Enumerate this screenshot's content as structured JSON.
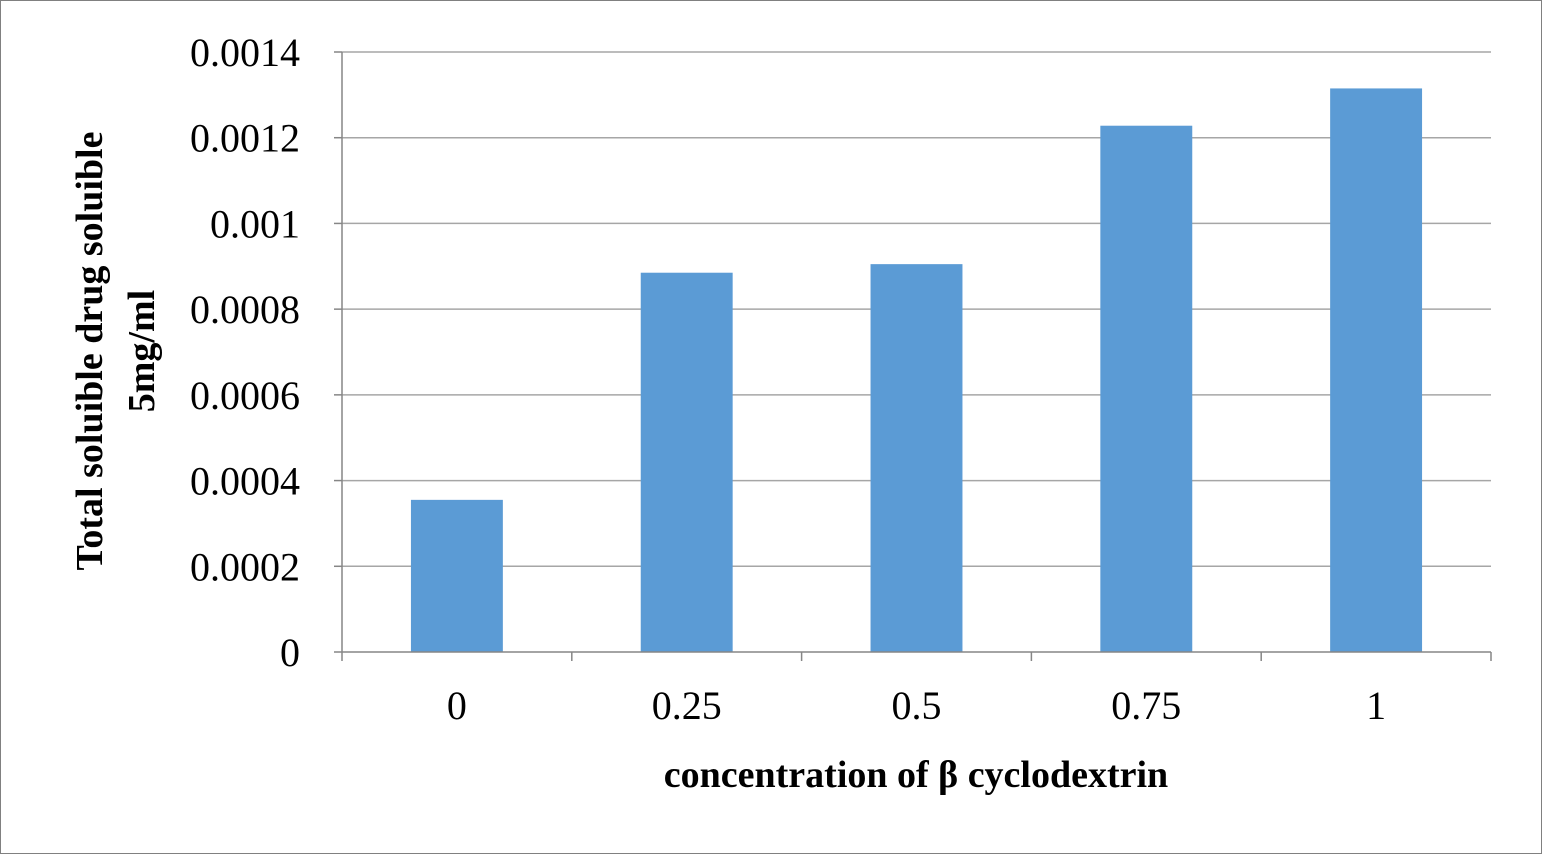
{
  "chart_data": {
    "type": "bar",
    "categories": [
      "0",
      "0.25",
      "0.5",
      "0.75",
      "1"
    ],
    "values": [
      0.000355,
      0.000885,
      0.000905,
      0.001228,
      0.001315
    ],
    "title": "",
    "xlabel": "concentration of β cyclodextrin",
    "ylabel_lines": [
      "Total soluible drug soluible",
      "5mg/ml"
    ],
    "ylim": [
      0,
      0.0014
    ],
    "yticks": [
      "0",
      "0.0002",
      "0.0004",
      "0.0006",
      "0.0008",
      "0.001",
      "0.0012",
      "0.0014"
    ],
    "grid": true,
    "legend": "none",
    "bar_color": "#5b9bd5"
  }
}
